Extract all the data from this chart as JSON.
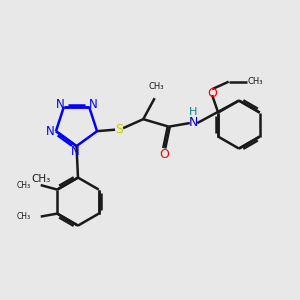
{
  "bg_color": "#e8e8e8",
  "bond_color": "#1a1a1a",
  "bond_width": 1.8,
  "tetrazole_N_color": "#0000ff",
  "sulfur_color": "#cccc00",
  "oxygen_color": "#ff0000",
  "amide_N_color": "#0000cd",
  "amide_H_color": "#008b8b",
  "figsize": [
    3.0,
    3.0
  ],
  "dpi": 100,
  "xlim": [
    0,
    10
  ],
  "ylim": [
    0,
    10
  ]
}
